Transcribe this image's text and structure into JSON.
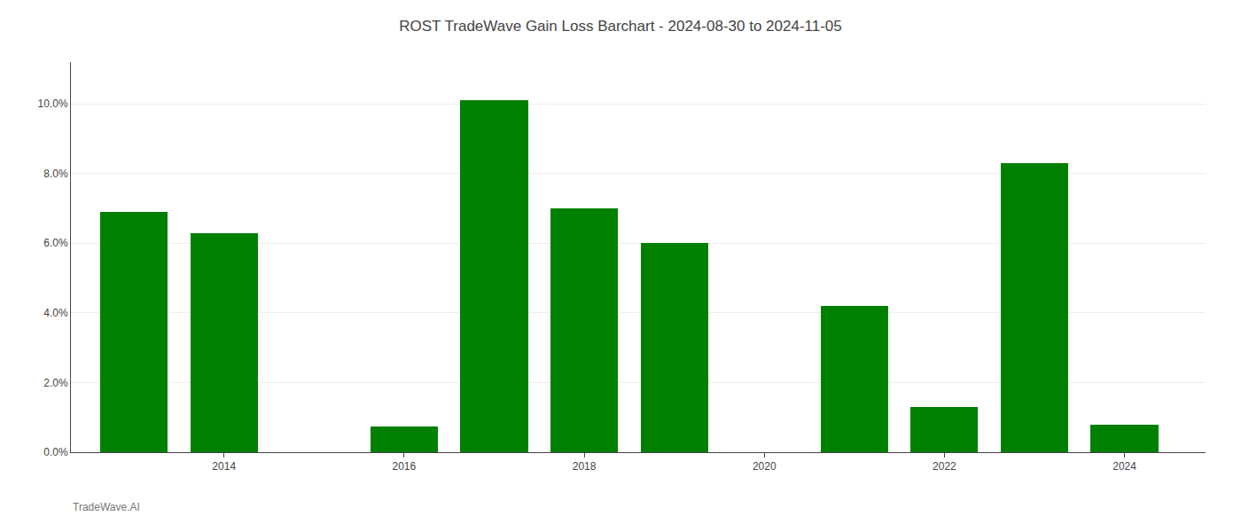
{
  "chart_data": {
    "type": "bar",
    "title": "ROST TradeWave Gain Loss Barchart - 2024-08-30 to 2024-11-05",
    "annotations": [
      "TradeWave.AI"
    ],
    "x": [
      2013,
      2014,
      2015,
      2016,
      2017,
      2018,
      2019,
      2020,
      2021,
      2022,
      2023,
      2024
    ],
    "values": [
      0.069,
      0.063,
      0.0,
      0.0075,
      0.101,
      0.07,
      0.06,
      0.0,
      0.042,
      0.013,
      0.083,
      0.008
    ],
    "color": "#008000",
    "xlim": [
      2012.3,
      2024.9
    ],
    "xticks": [
      2014,
      2016,
      2018,
      2020,
      2022,
      2024
    ],
    "ylim": [
      0,
      0.112
    ],
    "yticks": [
      {
        "value": 0.0,
        "label": "0.0%"
      },
      {
        "value": 0.02,
        "label": "2.0%"
      },
      {
        "value": 0.04,
        "label": "4.0%"
      },
      {
        "value": 0.06,
        "label": "6.0%"
      },
      {
        "value": 0.08,
        "label": "8.0%"
      },
      {
        "value": 0.1,
        "label": "10.0%"
      }
    ],
    "grid": true
  }
}
